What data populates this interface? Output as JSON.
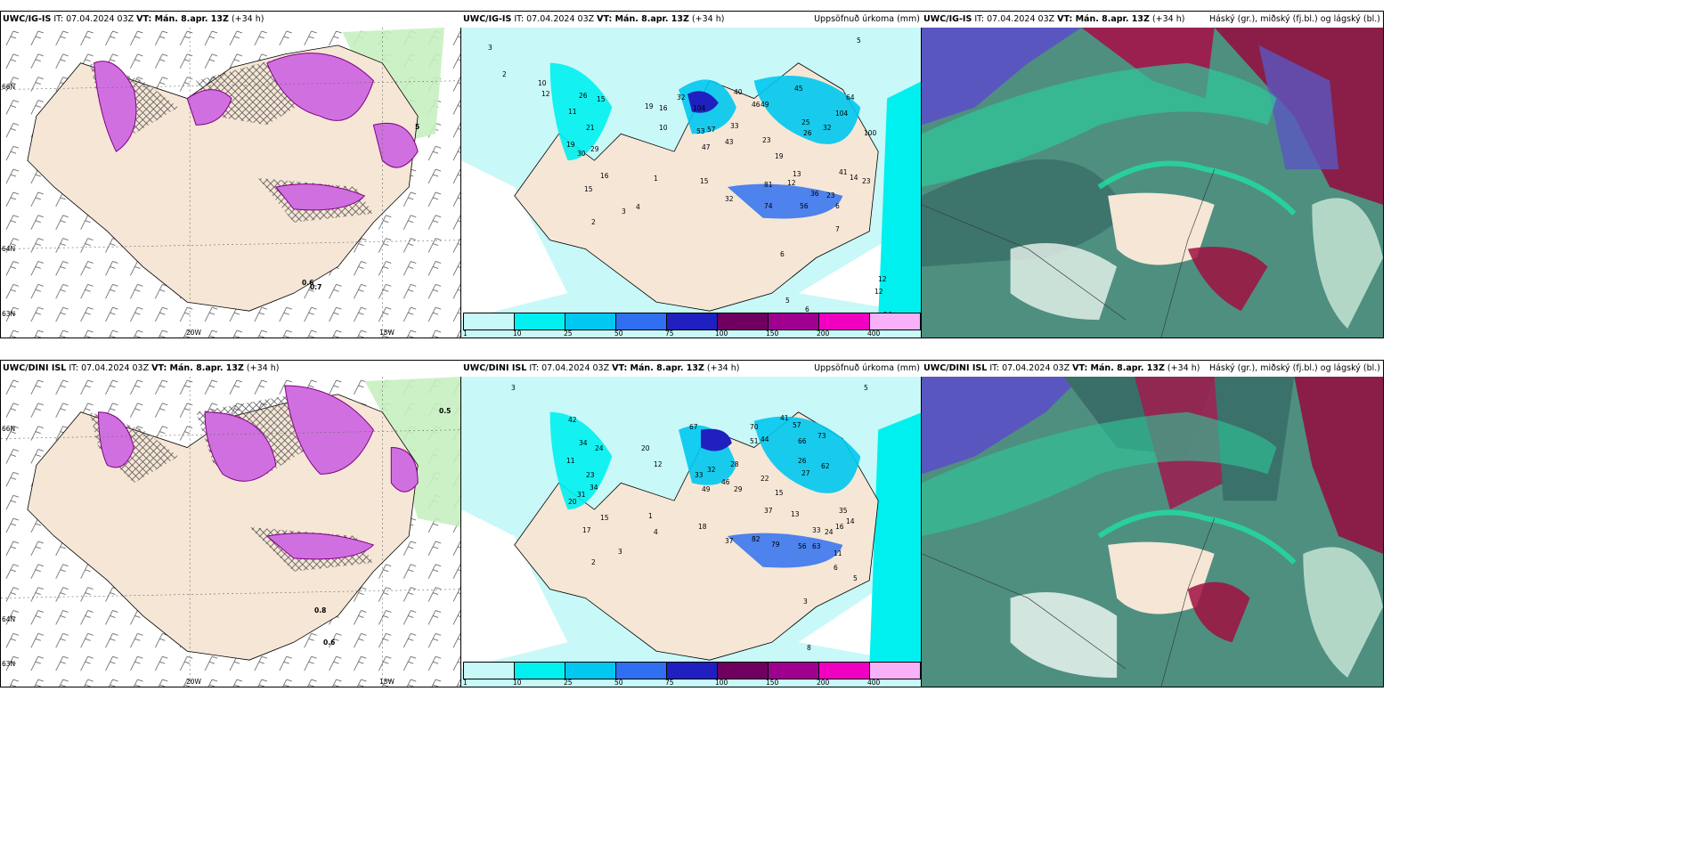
{
  "panels": [
    {
      "model": "UWC/IG-IS",
      "it": "IT: 07.04.2024 03Z",
      "vt": "VT: Mán. 8.apr. 13Z",
      "lead": "(+34 h)",
      "right": ""
    },
    {
      "model": "UWC/IG-IS",
      "it": "IT: 07.04.2024 03Z",
      "vt": "VT: Mán. 8.apr. 13Z",
      "lead": "(+34 h)",
      "right": "Uppsöfnuð úrkoma (mm)"
    },
    {
      "model": "UWC/IG-IS",
      "it": "IT: 07.04.2024 03Z",
      "vt": "VT: Mán. 8.apr. 13Z",
      "lead": "(+34 h)",
      "right": "Háský (gr.), miðský (fj.bl.) og lágský (bl.)"
    },
    {
      "model": "UWC/DINI ISL",
      "it": "IT: 07.04.2024 03Z",
      "vt": "VT: Mán. 8.apr. 13Z",
      "lead": "(+34 h)",
      "right": ""
    },
    {
      "model": "UWC/DINI ISL",
      "it": "IT: 07.04.2024 03Z",
      "vt": "VT: Mán. 8.apr. 13Z",
      "lead": "(+34 h)",
      "right": "Uppsöfnuð úrkoma (mm)"
    },
    {
      "model": "UWC/DINI ISL",
      "it": "IT: 07.04.2024 03Z",
      "vt": "VT: Mán. 8.apr. 13Z",
      "lead": "(+34 h)",
      "right": "Háský (gr.), miðský (fj.bl.) og lágský (bl.)"
    }
  ],
  "axes": {
    "lon_20": "20W",
    "lon_15": "15W",
    "lat_66": "66N",
    "lat_64": "64N",
    "lat_63": "63N"
  },
  "colorbar": {
    "labels": [
      "1",
      "10",
      "25",
      "50",
      "75",
      "100",
      "150",
      "200",
      "400"
    ],
    "colors": [
      "#c8f8f8",
      "#00f0f0",
      "#00c8f0",
      "#3070f0",
      "#2020c0",
      "#700060",
      "#a00090",
      "#f000c0",
      "#f8b0f8"
    ]
  },
  "precip_values": {
    "ig": [
      "3",
      "2",
      "10",
      "12",
      "26",
      "15",
      "11",
      "21",
      "19",
      "30",
      "29",
      "16",
      "15",
      "2",
      "1",
      "4",
      "3",
      "19",
      "16",
      "32",
      "104",
      "57",
      "53",
      "47",
      "33",
      "43",
      "23",
      "19",
      "10",
      "40",
      "49",
      "46",
      "45",
      "25",
      "26",
      "32",
      "104",
      "100",
      "64",
      "41",
      "14",
      "23",
      "13",
      "12",
      "36",
      "23",
      "15",
      "81",
      "32",
      "6",
      "7",
      "12",
      "12",
      "5",
      "6",
      "14",
      "6",
      "74",
      "56",
      "5"
    ],
    "dini": [
      "3",
      "5",
      "42",
      "34",
      "24",
      "11",
      "23",
      "34",
      "31",
      "20",
      "15",
      "17",
      "2",
      "3",
      "1",
      "4",
      "20",
      "12",
      "67",
      "32",
      "33",
      "49",
      "46",
      "29",
      "28",
      "70",
      "51",
      "44",
      "41",
      "57",
      "66",
      "73",
      "26",
      "27",
      "62",
      "22",
      "15",
      "37",
      "13",
      "33",
      "24",
      "16",
      "35",
      "14",
      "18",
      "37",
      "82",
      "79",
      "56",
      "63",
      "11",
      "6",
      "3",
      "8",
      "5"
    ]
  },
  "wind_labels_ig": [
    "0.6",
    "0.7",
    "5"
  ],
  "wind_labels_dini": [
    "0.8",
    "0.6",
    "0.5"
  ]
}
